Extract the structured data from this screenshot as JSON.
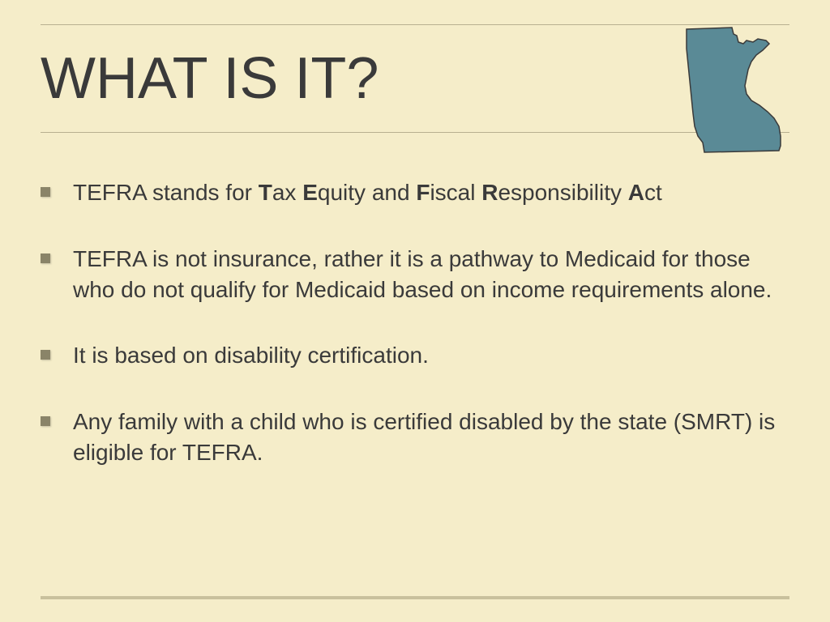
{
  "slide": {
    "background_color": "#f5edc9",
    "rule_color": "#b8b090",
    "bottom_rule_color": "#c8c09c",
    "text_color": "#3a3a3a",
    "bullet_marker_color": "#8a8468",
    "title": "WHAT IS IT?",
    "title_fontsize": 72,
    "body_fontsize": 28,
    "state_icon": {
      "name": "minnesota",
      "fill": "#5a8a96",
      "stroke": "#3a3a3a"
    },
    "bullets": [
      {
        "segments": [
          {
            "text": "TEFRA stands for ",
            "bold": false
          },
          {
            "text": "T",
            "bold": true
          },
          {
            "text": "ax ",
            "bold": false
          },
          {
            "text": "E",
            "bold": true
          },
          {
            "text": "quity and ",
            "bold": false
          },
          {
            "text": "F",
            "bold": true
          },
          {
            "text": "iscal ",
            "bold": false
          },
          {
            "text": "R",
            "bold": true
          },
          {
            "text": "esponsibility ",
            "bold": false
          },
          {
            "text": "A",
            "bold": true
          },
          {
            "text": "ct",
            "bold": false
          }
        ]
      },
      {
        "segments": [
          {
            "text": "TEFRA is not insurance, rather it is a pathway to Medicaid for those who do not qualify for Medicaid based on income requirements alone.",
            "bold": false
          }
        ]
      },
      {
        "segments": [
          {
            "text": "It is based on disability certification.",
            "bold": false
          }
        ]
      },
      {
        "segments": [
          {
            "text": "Any family with a child who is certified disabled by the state (SMRT) is eligible for TEFRA.",
            "bold": false
          }
        ]
      }
    ]
  }
}
